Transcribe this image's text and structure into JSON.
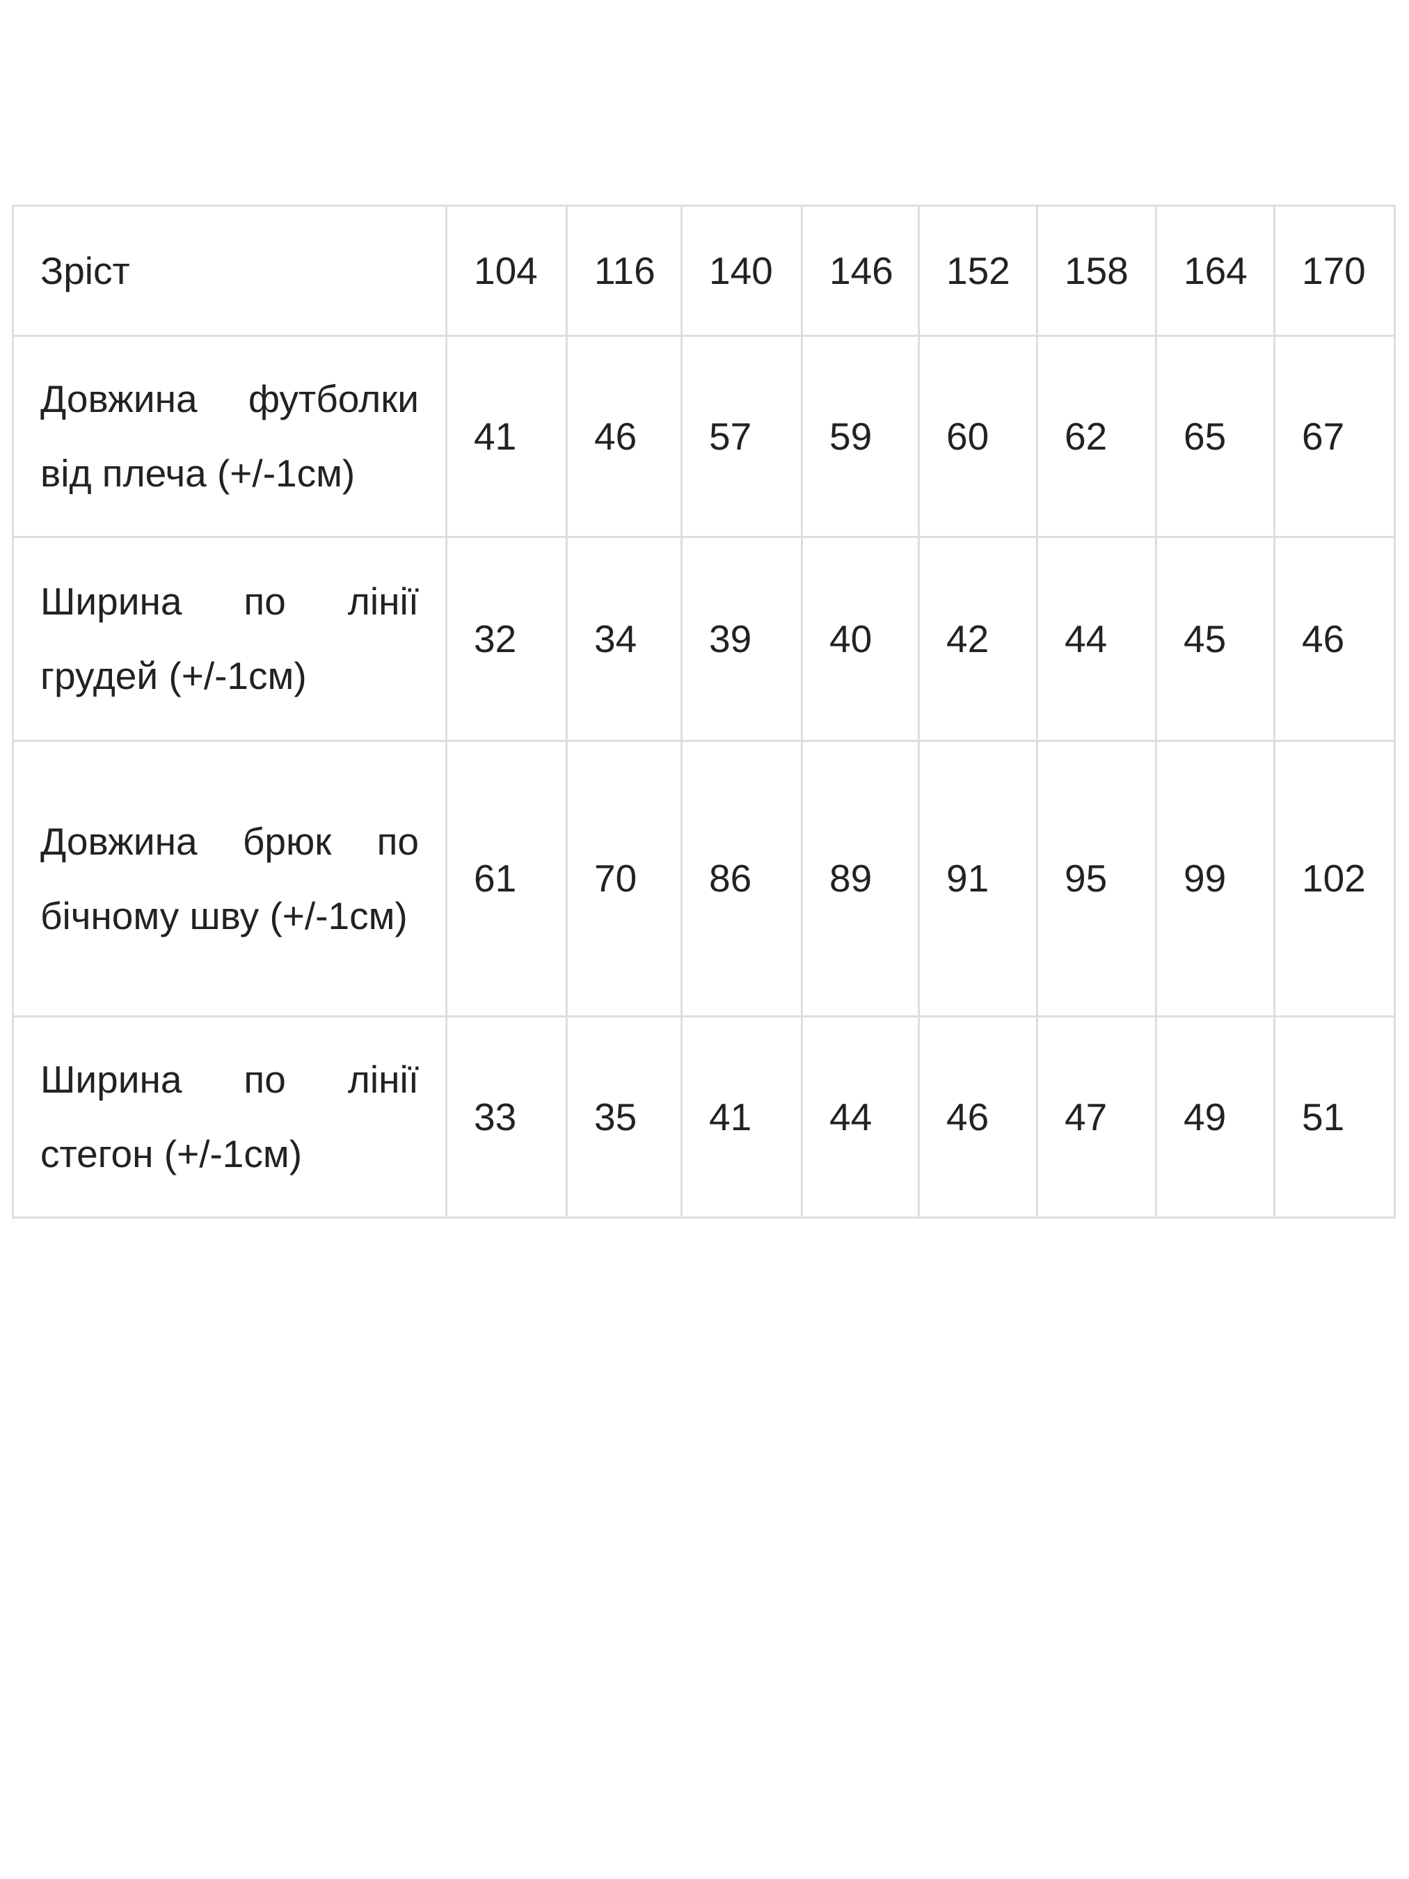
{
  "table": {
    "header": {
      "label": "Зріст",
      "values": [
        "104",
        "116",
        "140",
        "146",
        "152",
        "158",
        "164",
        "170"
      ]
    },
    "rows": [
      {
        "label": "Довжина футболки від плеча (+/-1см)",
        "values": [
          "41",
          "46",
          "57",
          "59",
          "60",
          "62",
          "65",
          "67"
        ]
      },
      {
        "label": "Ширина по лінії грудей (+/-1см)",
        "values": [
          "32",
          "34",
          "39",
          "40",
          "42",
          "44",
          "45",
          "46"
        ]
      },
      {
        "label": "Довжина брюк по бічному шву (+/-1см)",
        "values": [
          "61",
          "70",
          "86",
          "89",
          "91",
          "95",
          "99",
          "102"
        ]
      },
      {
        "label": "Ширина по лінії стегон (+/-1см)",
        "values": [
          "33",
          "35",
          "41",
          "44",
          "46",
          "47",
          "49",
          "51"
        ]
      }
    ]
  }
}
